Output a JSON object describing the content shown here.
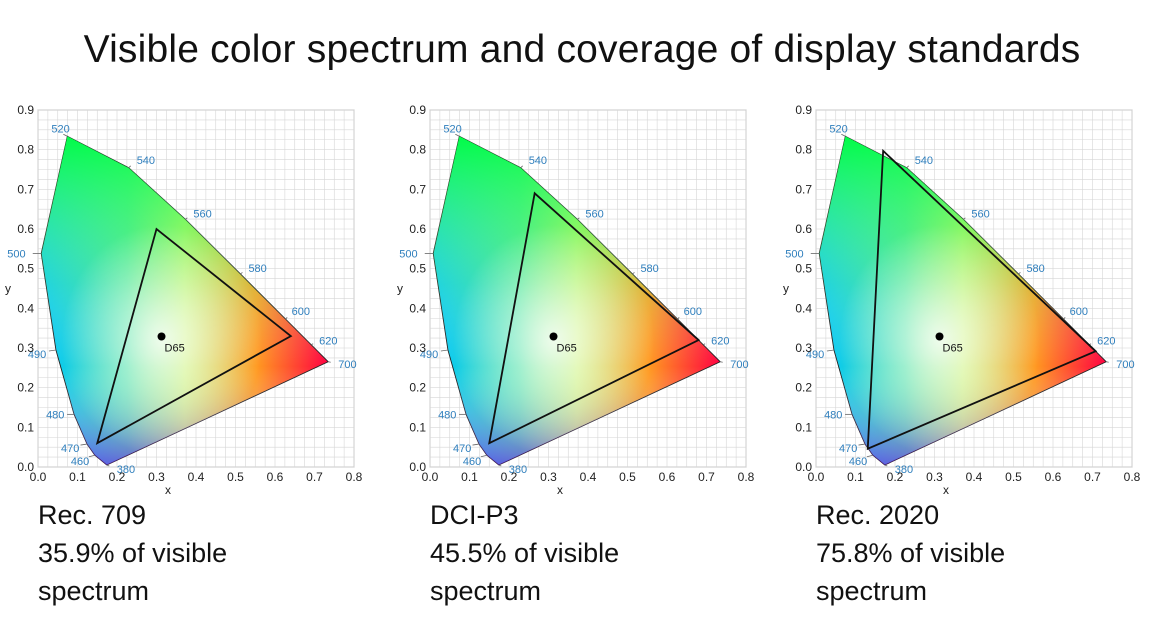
{
  "title": "Visible color spectrum and coverage of display standards",
  "chart_data": [
    {
      "type": "scatter",
      "name": "Rec. 709",
      "coverage": "35.9% of visible spectrum",
      "xlabel": "x",
      "ylabel": "y",
      "xlim": [
        0,
        0.8
      ],
      "ylim": [
        0,
        0.9
      ],
      "x_ticks": [
        "0.0",
        "0.1",
        "0.2",
        "0.3",
        "0.4",
        "0.5",
        "0.6",
        "0.7",
        "0.8"
      ],
      "y_ticks": [
        "0.0",
        "0.1",
        "0.2",
        "0.3",
        "0.4",
        "0.5",
        "0.6",
        "0.7",
        "0.8",
        "0.9"
      ],
      "white_point": {
        "label": "D65",
        "x": 0.3127,
        "y": 0.329
      },
      "gamut": [
        [
          0.64,
          0.33
        ],
        [
          0.3,
          0.6
        ],
        [
          0.15,
          0.06
        ]
      ],
      "wavelengths": [
        {
          "nm": "380",
          "x": 0.1741,
          "y": 0.005
        },
        {
          "nm": "460",
          "x": 0.144,
          "y": 0.0297
        },
        {
          "nm": "470",
          "x": 0.1241,
          "y": 0.0578
        },
        {
          "nm": "480",
          "x": 0.0913,
          "y": 0.1327
        },
        {
          "nm": "490",
          "x": 0.0454,
          "y": 0.295
        },
        {
          "nm": "500",
          "x": 0.0082,
          "y": 0.5384
        },
        {
          "nm": "520",
          "x": 0.0743,
          "y": 0.8338
        },
        {
          "nm": "540",
          "x": 0.2296,
          "y": 0.7543
        },
        {
          "nm": "560",
          "x": 0.3731,
          "y": 0.6245
        },
        {
          "nm": "580",
          "x": 0.5125,
          "y": 0.4866
        },
        {
          "nm": "600",
          "x": 0.627,
          "y": 0.3725
        },
        {
          "nm": "620",
          "x": 0.6915,
          "y": 0.3083
        },
        {
          "nm": "700",
          "x": 0.7347,
          "y": 0.2653
        }
      ]
    },
    {
      "type": "scatter",
      "name": "DCI-P3",
      "coverage": "45.5% of visible spectrum",
      "xlabel": "x",
      "ylabel": "y",
      "xlim": [
        0,
        0.8
      ],
      "ylim": [
        0,
        0.9
      ],
      "x_ticks": [
        "0.0",
        "0.1",
        "0.2",
        "0.3",
        "0.4",
        "0.5",
        "0.6",
        "0.7",
        "0.8"
      ],
      "y_ticks": [
        "0.0",
        "0.1",
        "0.2",
        "0.3",
        "0.4",
        "0.5",
        "0.6",
        "0.7",
        "0.8",
        "0.9"
      ],
      "white_point": {
        "label": "D65",
        "x": 0.3127,
        "y": 0.329
      },
      "gamut": [
        [
          0.68,
          0.32
        ],
        [
          0.265,
          0.69
        ],
        [
          0.15,
          0.06
        ]
      ],
      "wavelengths": [
        {
          "nm": "380",
          "x": 0.1741,
          "y": 0.005
        },
        {
          "nm": "460",
          "x": 0.144,
          "y": 0.0297
        },
        {
          "nm": "470",
          "x": 0.1241,
          "y": 0.0578
        },
        {
          "nm": "480",
          "x": 0.0913,
          "y": 0.1327
        },
        {
          "nm": "490",
          "x": 0.0454,
          "y": 0.295
        },
        {
          "nm": "500",
          "x": 0.0082,
          "y": 0.5384
        },
        {
          "nm": "520",
          "x": 0.0743,
          "y": 0.8338
        },
        {
          "nm": "540",
          "x": 0.2296,
          "y": 0.7543
        },
        {
          "nm": "560",
          "x": 0.3731,
          "y": 0.6245
        },
        {
          "nm": "580",
          "x": 0.5125,
          "y": 0.4866
        },
        {
          "nm": "600",
          "x": 0.627,
          "y": 0.3725
        },
        {
          "nm": "620",
          "x": 0.6915,
          "y": 0.3083
        },
        {
          "nm": "700",
          "x": 0.7347,
          "y": 0.2653
        }
      ]
    },
    {
      "type": "scatter",
      "name": "Rec. 2020",
      "coverage": "75.8% of visible spectrum",
      "xlabel": "x",
      "ylabel": "y",
      "xlim": [
        0,
        0.8
      ],
      "ylim": [
        0,
        0.9
      ],
      "x_ticks": [
        "0.0",
        "0.1",
        "0.2",
        "0.3",
        "0.4",
        "0.5",
        "0.6",
        "0.7",
        "0.8"
      ],
      "y_ticks": [
        "0.0",
        "0.1",
        "0.2",
        "0.3",
        "0.4",
        "0.5",
        "0.6",
        "0.7",
        "0.8",
        "0.9"
      ],
      "white_point": {
        "label": "D65",
        "x": 0.3127,
        "y": 0.329
      },
      "gamut": [
        [
          0.708,
          0.292
        ],
        [
          0.17,
          0.797
        ],
        [
          0.131,
          0.046
        ]
      ],
      "wavelengths": [
        {
          "nm": "380",
          "x": 0.1741,
          "y": 0.005
        },
        {
          "nm": "460",
          "x": 0.144,
          "y": 0.0297
        },
        {
          "nm": "470",
          "x": 0.1241,
          "y": 0.0578
        },
        {
          "nm": "480",
          "x": 0.0913,
          "y": 0.1327
        },
        {
          "nm": "490",
          "x": 0.0454,
          "y": 0.295
        },
        {
          "nm": "500",
          "x": 0.0082,
          "y": 0.5384
        },
        {
          "nm": "520",
          "x": 0.0743,
          "y": 0.8338
        },
        {
          "nm": "540",
          "x": 0.2296,
          "y": 0.7543
        },
        {
          "nm": "560",
          "x": 0.3731,
          "y": 0.6245
        },
        {
          "nm": "580",
          "x": 0.5125,
          "y": 0.4866
        },
        {
          "nm": "600",
          "x": 0.627,
          "y": 0.3725
        },
        {
          "nm": "620",
          "x": 0.6915,
          "y": 0.3083
        },
        {
          "nm": "700",
          "x": 0.7347,
          "y": 0.2653
        }
      ]
    }
  ],
  "colors": {
    "wavelength_label": "#2f7fbd",
    "grid": "#d6d6d6",
    "gamut_line": "#111111",
    "text": "#111111"
  }
}
